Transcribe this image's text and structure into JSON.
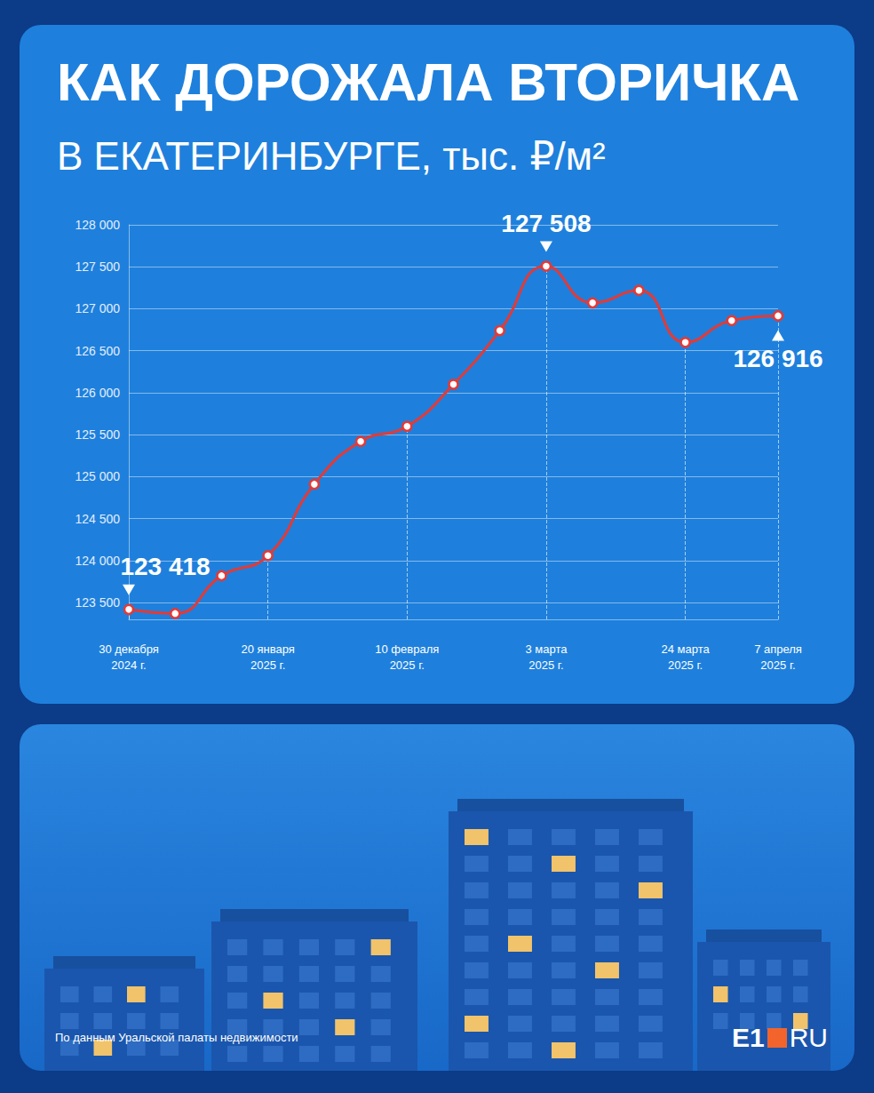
{
  "chart_data": {
    "type": "line",
    "title": "КАК ДОРОЖАЛА ВТОРИЧКА",
    "subtitle": "В ЕКАТЕРИНБУРГЕ, тыс. ₽/м²",
    "categories": [
      "30 декабря 2024 г.",
      null,
      null,
      "20 января 2025 г.",
      null,
      null,
      "10 февраля 2025 г.",
      null,
      null,
      "3 марта 2025 г.",
      null,
      null,
      "24 марта 2025 г.",
      null,
      "7 апреля 2025 г."
    ],
    "values": [
      123418,
      123370,
      123820,
      124060,
      124910,
      125420,
      125600,
      126100,
      126740,
      127508,
      127070,
      127220,
      126600,
      126860,
      126916
    ],
    "value_labels": [
      "123 418",
      null,
      null,
      null,
      null,
      null,
      null,
      null,
      null,
      "127 508",
      null,
      null,
      null,
      null,
      "126 916"
    ],
    "color": "#e53935",
    "marker": "circle",
    "line_style": "solid",
    "ylim": [
      123300,
      128000
    ],
    "yticks": [
      {
        "value": 123500,
        "label": "123 500"
      },
      {
        "value": 124000,
        "label": "124 000"
      },
      {
        "value": 124500,
        "label": "124 500"
      },
      {
        "value": 125000,
        "label": "125 000"
      },
      {
        "value": 125500,
        "label": "125 500"
      },
      {
        "value": 126000,
        "label": "126 000"
      },
      {
        "value": 126500,
        "label": "126 500"
      },
      {
        "value": 127000,
        "label": "127 000"
      },
      {
        "value": 127500,
        "label": "127 500"
      },
      {
        "value": 128000,
        "label": "128 000"
      }
    ],
    "grid": true
  },
  "footer": {
    "source": "По данным Уральской палаты недвижимости",
    "logo": [
      "E1",
      "RU"
    ]
  }
}
